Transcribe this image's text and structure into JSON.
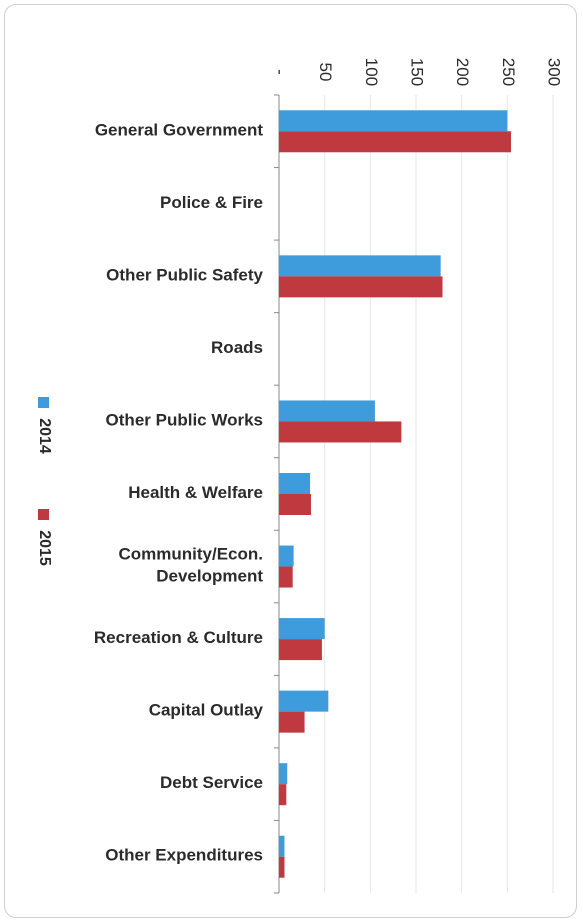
{
  "chart_data": {
    "type": "bar",
    "orientation": "horizontal",
    "axis_position": "top",
    "tick_labels_rotated": true,
    "categories": [
      "General Government",
      "Police & Fire",
      "Other Public Safety",
      "Roads",
      "Other Public Works",
      "Health & Welfare",
      "Community/Econ. Development",
      "Recreation & Culture",
      "Capital Outlay",
      "Debt Service",
      "Other Expenditures"
    ],
    "category_lines": [
      [
        "General Government"
      ],
      [
        "Police & Fire"
      ],
      [
        "Other Public Safety"
      ],
      [
        "Roads"
      ],
      [
        "Other Public Works"
      ],
      [
        "Health & Welfare"
      ],
      [
        "Community/Econ.",
        "Development"
      ],
      [
        "Recreation & Culture"
      ],
      [
        "Capital Outlay"
      ],
      [
        "Debt Service"
      ],
      [
        "Other Expenditures"
      ]
    ],
    "series": [
      {
        "name": "2014",
        "color": "#3e9bdc",
        "values": [
          250,
          0,
          177,
          0,
          105,
          34,
          16,
          50,
          54,
          9,
          6
        ]
      },
      {
        "name": "2015",
        "color": "#c0393f",
        "values": [
          254,
          0,
          179,
          0,
          134,
          35,
          15,
          47,
          28,
          8,
          6
        ]
      }
    ],
    "xlim": [
      0,
      300
    ],
    "ticks": [
      0,
      50,
      100,
      150,
      200,
      250,
      300
    ],
    "tick_labels": [
      "-",
      "50",
      "100",
      "150",
      "200",
      "250",
      "300"
    ],
    "grid": true,
    "legend_position": "left"
  }
}
